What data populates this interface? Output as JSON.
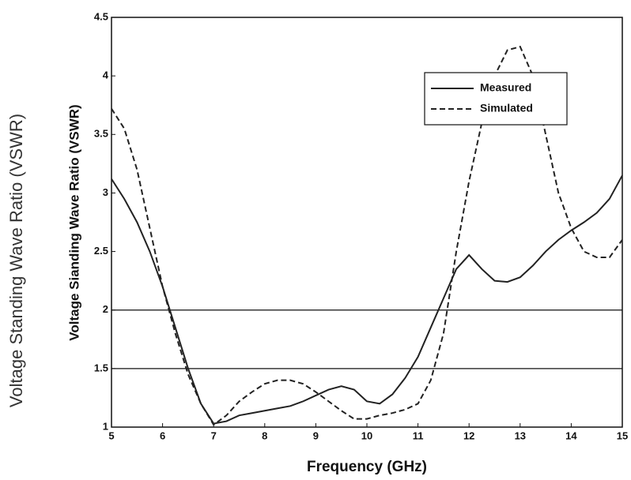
{
  "chart_data": {
    "type": "line",
    "page_label": "Voltage Standing Wave Ratio (VSWR)",
    "ylabel": "Voltage Sianding Wave Ratio (VSWR)",
    "xlabel": "Frequency (GHz)",
    "x": [
      5,
      5.25,
      5.5,
      5.75,
      6,
      6.25,
      6.5,
      6.75,
      7,
      7.25,
      7.5,
      7.75,
      8,
      8.25,
      8.5,
      8.75,
      9,
      9.25,
      9.5,
      9.75,
      10,
      10.25,
      10.5,
      10.75,
      11,
      11.25,
      11.5,
      11.75,
      12,
      12.25,
      12.5,
      12.75,
      13,
      13.25,
      13.5,
      13.75,
      14,
      14.25,
      14.5,
      14.75,
      15
    ],
    "series": [
      {
        "name": "Measured",
        "color": "#222222",
        "dash": false,
        "values": [
          3.12,
          2.95,
          2.75,
          2.5,
          2.2,
          1.85,
          1.5,
          1.2,
          1.03,
          1.05,
          1.1,
          1.12,
          1.14,
          1.16,
          1.18,
          1.22,
          1.27,
          1.32,
          1.35,
          1.32,
          1.22,
          1.2,
          1.28,
          1.42,
          1.6,
          1.85,
          2.1,
          2.35,
          2.47,
          2.35,
          2.25,
          2.24,
          2.28,
          2.38,
          2.5,
          2.6,
          2.68,
          2.75,
          2.83,
          2.95,
          3.15
        ]
      },
      {
        "name": "Simulated",
        "color": "#222222",
        "dash": true,
        "values": [
          3.72,
          3.55,
          3.2,
          2.7,
          2.2,
          1.8,
          1.45,
          1.2,
          1.02,
          1.1,
          1.22,
          1.3,
          1.37,
          1.4,
          1.4,
          1.37,
          1.3,
          1.22,
          1.14,
          1.07,
          1.07,
          1.1,
          1.12,
          1.15,
          1.2,
          1.4,
          1.8,
          2.5,
          3.1,
          3.6,
          4.0,
          4.22,
          4.25,
          4.0,
          3.5,
          3.0,
          2.7,
          2.5,
          2.45,
          2.45,
          2.6
        ]
      }
    ],
    "reference_lines": [
      2,
      1.5
    ],
    "xlim": [
      5,
      15
    ],
    "xticks": [
      5,
      6,
      7,
      8,
      9,
      10,
      11,
      12,
      13,
      14,
      15
    ],
    "ylim": [
      1,
      4.5
    ],
    "yticks": [
      1,
      1.5,
      2,
      2.5,
      3,
      3.5,
      4,
      4.5
    ],
    "legend": "upper right"
  }
}
